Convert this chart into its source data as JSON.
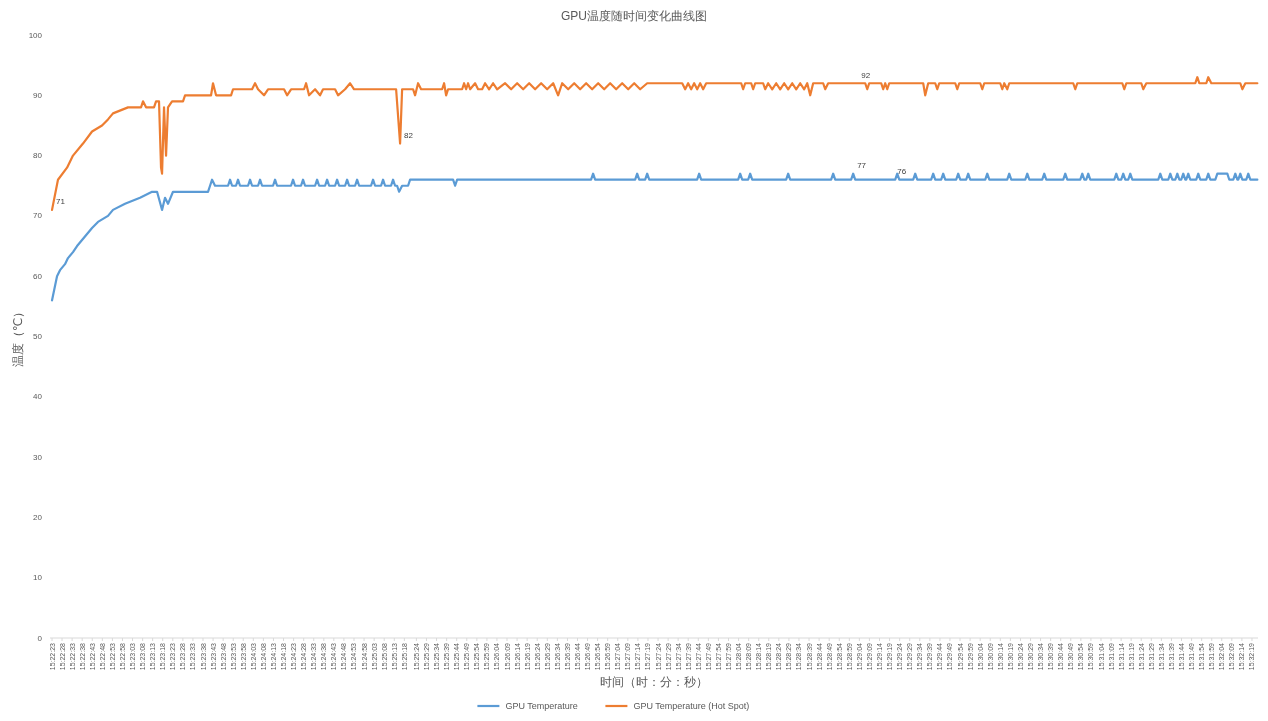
{
  "chart_data": {
    "type": "line",
    "title": "GPU温度随时间变化曲线图",
    "xlabel": "时间（时：分：秒）",
    "ylabel": "温度（℃）",
    "xlim": [
      15.37278,
      15.53944
    ],
    "ylim": [
      0,
      100
    ],
    "yticks": [
      0,
      10,
      20,
      30,
      40,
      50,
      60,
      70,
      80,
      90,
      100
    ],
    "xticks": [
      {
        "value": 15.37306,
        "label": "15:22:23"
      },
      {
        "value": 15.37444,
        "label": "15:22:28"
      },
      {
        "value": 15.37583,
        "label": "15:22:33"
      },
      {
        "value": 15.37722,
        "label": "15:22:38"
      },
      {
        "value": 15.37861,
        "label": "15:22:43"
      },
      {
        "value": 15.38,
        "label": "15:22:48"
      },
      {
        "value": 15.38139,
        "label": "15:22:53"
      },
      {
        "value": 15.38278,
        "label": "15:22:58"
      },
      {
        "value": 15.38417,
        "label": "15:23:03"
      },
      {
        "value": 15.38556,
        "label": "15:23:08"
      },
      {
        "value": 15.38694,
        "label": "15:23:13"
      },
      {
        "value": 15.38833,
        "label": "15:23:18"
      },
      {
        "value": 15.38972,
        "label": "15:23:23"
      },
      {
        "value": 15.39111,
        "label": "15:23:28"
      },
      {
        "value": 15.3925,
        "label": "15:23:33"
      },
      {
        "value": 15.39389,
        "label": "15:23:38"
      },
      {
        "value": 15.39528,
        "label": "15:23:43"
      },
      {
        "value": 15.39667,
        "label": "15:23:48"
      },
      {
        "value": 15.39806,
        "label": "15:23:53"
      },
      {
        "value": 15.39944,
        "label": "15:23:58"
      },
      {
        "value": 15.40083,
        "label": "15:24:03"
      },
      {
        "value": 15.40222,
        "label": "15:24:08"
      },
      {
        "value": 15.40361,
        "label": "15:24:13"
      },
      {
        "value": 15.405,
        "label": "15:24:18"
      },
      {
        "value": 15.40639,
        "label": "15:24:23"
      },
      {
        "value": 15.40778,
        "label": "15:24:28"
      },
      {
        "value": 15.40917,
        "label": "15:24:33"
      },
      {
        "value": 15.41056,
        "label": "15:24:38"
      },
      {
        "value": 15.41194,
        "label": "15:24:43"
      },
      {
        "value": 15.41333,
        "label": "15:24:48"
      },
      {
        "value": 15.41472,
        "label": "15:24:53"
      },
      {
        "value": 15.41611,
        "label": "15:24:58"
      },
      {
        "value": 15.4175,
        "label": "15:25:03"
      },
      {
        "value": 15.41889,
        "label": "15:25:08"
      },
      {
        "value": 15.42028,
        "label": "15:25:13"
      },
      {
        "value": 15.42167,
        "label": "15:25:18"
      },
      {
        "value": 15.42333,
        "label": "15:25:24"
      },
      {
        "value": 15.42472,
        "label": "15:25:29"
      },
      {
        "value": 15.42611,
        "label": "15:25:34"
      },
      {
        "value": 15.4275,
        "label": "15:25:39"
      },
      {
        "value": 15.42889,
        "label": "15:25:44"
      },
      {
        "value": 15.43028,
        "label": "15:25:49"
      },
      {
        "value": 15.43167,
        "label": "15:25:54"
      },
      {
        "value": 15.43306,
        "label": "15:25:59"
      },
      {
        "value": 15.43444,
        "label": "15:26:04"
      },
      {
        "value": 15.43583,
        "label": "15:26:09"
      },
      {
        "value": 15.43722,
        "label": "15:26:14"
      },
      {
        "value": 15.43861,
        "label": "15:26:19"
      },
      {
        "value": 15.44,
        "label": "15:26:24"
      },
      {
        "value": 15.44139,
        "label": "15:26:29"
      },
      {
        "value": 15.44278,
        "label": "15:26:34"
      },
      {
        "value": 15.44417,
        "label": "15:26:39"
      },
      {
        "value": 15.44556,
        "label": "15:26:44"
      },
      {
        "value": 15.44694,
        "label": "15:26:49"
      },
      {
        "value": 15.44833,
        "label": "15:26:54"
      },
      {
        "value": 15.44972,
        "label": "15:26:59"
      },
      {
        "value": 15.45111,
        "label": "15:27:04"
      },
      {
        "value": 15.4525,
        "label": "15:27:09"
      },
      {
        "value": 15.45389,
        "label": "15:27:14"
      },
      {
        "value": 15.45528,
        "label": "15:27:19"
      },
      {
        "value": 15.45667,
        "label": "15:27:24"
      },
      {
        "value": 15.45806,
        "label": "15:27:29"
      },
      {
        "value": 15.45944,
        "label": "15:27:34"
      },
      {
        "value": 15.46083,
        "label": "15:27:39"
      },
      {
        "value": 15.46222,
        "label": "15:27:44"
      },
      {
        "value": 15.46361,
        "label": "15:27:49"
      },
      {
        "value": 15.465,
        "label": "15:27:54"
      },
      {
        "value": 15.46639,
        "label": "15:27:59"
      },
      {
        "value": 15.46778,
        "label": "15:28:04"
      },
      {
        "value": 15.46917,
        "label": "15:28:09"
      },
      {
        "value": 15.47056,
        "label": "15:28:14"
      },
      {
        "value": 15.47194,
        "label": "15:28:19"
      },
      {
        "value": 15.47333,
        "label": "15:28:24"
      },
      {
        "value": 15.47472,
        "label": "15:28:29"
      },
      {
        "value": 15.47611,
        "label": "15:28:34"
      },
      {
        "value": 15.4775,
        "label": "15:28:39"
      },
      {
        "value": 15.47889,
        "label": "15:28:44"
      },
      {
        "value": 15.48028,
        "label": "15:28:49"
      },
      {
        "value": 15.48167,
        "label": "15:28:54"
      },
      {
        "value": 15.48306,
        "label": "15:28:59"
      },
      {
        "value": 15.48444,
        "label": "15:29:04"
      },
      {
        "value": 15.48583,
        "label": "15:29:09"
      },
      {
        "value": 15.48722,
        "label": "15:29:14"
      },
      {
        "value": 15.48861,
        "label": "15:29:19"
      },
      {
        "value": 15.49,
        "label": "15:29:24"
      },
      {
        "value": 15.49139,
        "label": "15:29:29"
      },
      {
        "value": 15.49278,
        "label": "15:29:34"
      },
      {
        "value": 15.49417,
        "label": "15:29:39"
      },
      {
        "value": 15.49556,
        "label": "15:29:44"
      },
      {
        "value": 15.49694,
        "label": "15:29:49"
      },
      {
        "value": 15.49833,
        "label": "15:29:54"
      },
      {
        "value": 15.49972,
        "label": "15:29:59"
      },
      {
        "value": 15.50111,
        "label": "15:30:04"
      },
      {
        "value": 15.5025,
        "label": "15:30:09"
      },
      {
        "value": 15.50389,
        "label": "15:30:14"
      },
      {
        "value": 15.50528,
        "label": "15:30:19"
      },
      {
        "value": 15.50667,
        "label": "15:30:24"
      },
      {
        "value": 15.50806,
        "label": "15:30:29"
      },
      {
        "value": 15.50944,
        "label": "15:30:34"
      },
      {
        "value": 15.51083,
        "label": "15:30:39"
      },
      {
        "value": 15.51222,
        "label": "15:30:44"
      },
      {
        "value": 15.51361,
        "label": "15:30:49"
      },
      {
        "value": 15.515,
        "label": "15:30:54"
      },
      {
        "value": 15.51639,
        "label": "15:30:59"
      },
      {
        "value": 15.51778,
        "label": "15:31:04"
      },
      {
        "value": 15.51917,
        "label": "15:31:09"
      },
      {
        "value": 15.52056,
        "label": "15:31:14"
      },
      {
        "value": 15.52194,
        "label": "15:31:19"
      },
      {
        "value": 15.52333,
        "label": "15:31:24"
      },
      {
        "value": 15.52472,
        "label": "15:31:29"
      },
      {
        "value": 15.52611,
        "label": "15:31:34"
      },
      {
        "value": 15.5275,
        "label": "15:31:39"
      },
      {
        "value": 15.52889,
        "label": "15:31:44"
      },
      {
        "value": 15.53028,
        "label": "15:31:49"
      },
      {
        "value": 15.53167,
        "label": "15:31:54"
      },
      {
        "value": 15.53306,
        "label": "15:31:59"
      },
      {
        "value": 15.53444,
        "label": "15:32:04"
      },
      {
        "value": 15.53583,
        "label": "15:32:09"
      },
      {
        "value": 15.53722,
        "label": "15:32:14"
      },
      {
        "value": 15.53861,
        "label": "15:32:19"
      }
    ],
    "legend": "bottom",
    "series": [
      {
        "name": "GPU Temperature",
        "color": "#5b9bd5",
        "x": [
          15.37306,
          15.37375,
          15.37416,
          15.37485,
          15.37526,
          15.37595,
          15.37651,
          15.3772,
          15.37789,
          15.37858,
          15.3794,
          15.38078,
          15.38147,
          15.38313,
          15.3852,
          15.38686,
          15.38755,
          15.38824,
          15.38865,
          15.38906,
          15.38975,
          15.39458,
          15.39486,
          15.39514,
          15.39555,
          15.39734,
          15.39762,
          15.3979,
          15.39844,
          15.39872,
          15.399,
          15.4001,
          15.40038,
          15.40066,
          15.40148,
          15.40176,
          15.40204,
          15.40355,
          15.40383,
          15.40411,
          15.40603,
          15.40631,
          15.40659,
          15.40741,
          15.40769,
          15.40797,
          15.40935,
          15.40963,
          15.40991,
          15.41073,
          15.41101,
          15.41129,
          15.41211,
          15.41239,
          15.41267,
          15.41349,
          15.41377,
          15.41405,
          15.41487,
          15.41515,
          15.41543,
          15.41707,
          15.41735,
          15.41763,
          15.41845,
          15.41873,
          15.41901,
          15.41983,
          15.42011,
          15.42039,
          15.42067,
          15.42094,
          15.42136,
          15.42218,
          15.42246,
          15.42839,
          15.42867,
          15.42895,
          15.44743,
          15.44771,
          15.44799,
          15.45351,
          15.45379,
          15.45407,
          15.45489,
          15.45517,
          15.45545,
          15.46206,
          15.46234,
          15.46262,
          15.46772,
          15.468,
          15.46828,
          15.4691,
          15.46938,
          15.46966,
          15.47434,
          15.47462,
          15.4749,
          15.48055,
          15.48083,
          15.48111,
          15.48331,
          15.48359,
          15.48387,
          15.48939,
          15.48967,
          15.48995,
          15.49187,
          15.49215,
          15.49243,
          15.49435,
          15.49463,
          15.49491,
          15.49573,
          15.49601,
          15.49629,
          15.4978,
          15.49808,
          15.49836,
          15.49918,
          15.49946,
          15.49974,
          15.50181,
          15.50209,
          15.50237,
          15.50484,
          15.50512,
          15.5054,
          15.50733,
          15.50761,
          15.50789,
          15.50967,
          15.50995,
          15.51023,
          15.51257,
          15.51285,
          15.51313,
          15.51492,
          15.5152,
          15.51548,
          15.51574,
          15.51602,
          15.5163,
          15.51961,
          15.51989,
          15.52017,
          15.52057,
          15.52085,
          15.52113,
          15.52154,
          15.52182,
          15.5221,
          15.52568,
          15.52596,
          15.52624,
          15.52706,
          15.52734,
          15.52762,
          15.52803,
          15.52831,
          15.52859,
          15.52885,
          15.52913,
          15.52941,
          15.52954,
          15.52982,
          15.5301,
          15.53092,
          15.5312,
          15.53148,
          15.5323,
          15.53258,
          15.53286,
          15.53355,
          15.53383,
          15.53521,
          15.53548,
          15.53603,
          15.53631,
          15.53659,
          15.53672,
          15.537,
          15.53728,
          15.53782,
          15.5381,
          15.53838,
          15.53935
        ],
        "values": [
          56,
          60,
          61,
          62,
          63,
          64,
          65,
          66,
          67,
          68,
          69,
          70,
          71,
          72,
          73,
          74,
          74,
          71,
          73,
          72,
          74,
          74,
          75,
          76,
          75,
          75,
          76,
          75,
          75,
          76,
          75,
          75,
          76,
          75,
          75,
          76,
          75,
          75,
          76,
          75,
          75,
          76,
          75,
          75,
          76,
          75,
          75,
          76,
          75,
          75,
          76,
          75,
          75,
          76,
          75,
          75,
          76,
          75,
          75,
          76,
          75,
          75,
          76,
          75,
          75,
          76,
          75,
          75,
          76,
          75,
          75,
          74,
          75,
          75,
          76,
          76,
          75,
          76,
          76,
          77,
          76,
          76,
          77,
          76,
          76,
          77,
          76,
          76,
          77,
          76,
          76,
          77,
          76,
          76,
          77,
          76,
          76,
          77,
          76,
          76,
          77,
          76,
          76,
          77,
          76,
          76,
          77,
          76,
          76,
          77,
          76,
          76,
          77,
          76,
          76,
          77,
          76,
          76,
          77,
          76,
          76,
          77,
          76,
          76,
          77,
          76,
          76,
          77,
          76,
          76,
          77,
          76,
          76,
          77,
          76,
          76,
          77,
          76,
          76,
          77,
          76,
          76,
          77,
          76,
          76,
          77,
          76,
          76,
          77,
          76,
          76,
          77,
          76,
          76,
          77,
          76,
          76,
          77,
          76,
          76,
          77,
          76,
          76,
          77,
          76,
          76,
          77,
          76,
          76,
          77,
          76,
          76,
          77,
          76,
          76,
          77,
          77,
          76,
          76,
          77,
          76,
          76,
          77,
          76,
          76,
          77,
          76,
          76
        ]
      },
      {
        "name": "GPU Temperature (Hot Spot)",
        "color": "#ed7d31",
        "x": [
          15.37306,
          15.37388,
          15.37513,
          15.37595,
          15.37733,
          15.37858,
          15.37996,
          15.38078,
          15.38147,
          15.38354,
          15.38534,
          15.38561,
          15.38603,
          15.38713,
          15.38741,
          15.38782,
          15.3881,
          15.38824,
          15.38851,
          15.38879,
          15.38906,
          15.38962,
          15.39113,
          15.39141,
          15.395,
          15.39527,
          15.39569,
          15.39776,
          15.39803,
          15.40066,
          15.40107,
          15.40148,
          15.40231,
          15.40286,
          15.40507,
          15.40549,
          15.40604,
          15.40783,
          15.40811,
          15.40852,
          15.40935,
          15.41004,
          15.41045,
          15.41211,
          15.41252,
          15.41349,
          15.41418,
          15.41473,
          15.42053,
          15.42108,
          15.42136,
          15.42287,
          15.42315,
          15.42356,
          15.42398,
          15.42688,
          15.42715,
          15.42743,
          15.4277,
          15.42964,
          15.42991,
          15.43019,
          15.43046,
          15.43074,
          15.43143,
          15.43184,
          15.4324,
          15.43281,
          15.43336,
          15.43391,
          15.43447,
          15.43557,
          15.4364,
          15.43723,
          15.43806,
          15.43889,
          15.43971,
          15.44054,
          15.44137,
          15.4422,
          15.44288,
          15.44344,
          15.44427,
          15.4451,
          15.44592,
          15.44675,
          15.44758,
          15.44841,
          15.44924,
          15.45006,
          15.45089,
          15.45172,
          15.45255,
          15.45338,
          15.4542,
          15.45517,
          15.46,
          15.46041,
          15.46082,
          15.46124,
          15.46165,
          15.46207,
          15.46248,
          15.46289,
          15.46331,
          15.46814,
          15.46841,
          15.46869,
          15.46952,
          15.46979,
          15.47007,
          15.47117,
          15.47145,
          15.47186,
          15.47242,
          15.47297,
          15.47352,
          15.47407,
          15.47462,
          15.47518,
          15.47573,
          15.47628,
          15.47683,
          15.47725,
          15.47766,
          15.47807,
          15.47945,
          15.47973,
          15.48014,
          15.48525,
          15.48553,
          15.4858,
          15.48746,
          15.48773,
          15.48801,
          15.48829,
          15.48856,
          15.49325,
          15.49353,
          15.49394,
          15.49491,
          15.49519,
          15.49546,
          15.49767,
          15.49795,
          15.49822,
          15.50112,
          15.5014,
          15.50167,
          15.50388,
          15.50416,
          15.50443,
          15.50485,
          15.50512,
          15.51395,
          15.51423,
          15.51451,
          15.52072,
          15.52099,
          15.52127,
          15.52334,
          15.52361,
          15.52403,
          15.53079,
          15.53107,
          15.53134,
          15.53231,
          15.53258,
          15.533,
          15.537,
          15.53728,
          15.53769,
          15.53935
        ],
        "values": [
          71,
          76,
          78,
          80,
          82,
          84,
          85,
          86,
          87,
          88,
          88,
          89,
          88,
          88,
          89,
          89,
          78,
          77,
          88,
          80,
          88,
          89,
          89,
          90,
          90,
          92,
          90,
          90,
          91,
          91,
          92,
          91,
          90,
          91,
          91,
          90,
          91,
          91,
          92,
          90,
          91,
          90,
          91,
          91,
          90,
          91,
          92,
          91,
          91,
          82,
          91,
          91,
          90,
          92,
          91,
          91,
          92,
          90,
          91,
          91,
          92,
          91,
          92,
          91,
          92,
          91,
          91,
          92,
          91,
          92,
          91,
          92,
          91,
          92,
          91,
          92,
          91,
          92,
          91,
          92,
          90,
          92,
          91,
          92,
          91,
          92,
          91,
          92,
          91,
          92,
          91,
          92,
          91,
          92,
          91,
          92,
          92,
          91,
          92,
          91,
          92,
          91,
          92,
          91,
          92,
          92,
          91,
          92,
          92,
          91,
          92,
          92,
          91,
          92,
          91,
          92,
          91,
          92,
          91,
          92,
          91,
          92,
          91,
          92,
          90,
          92,
          92,
          91,
          92,
          92,
          91,
          92,
          92,
          91,
          92,
          91,
          92,
          92,
          90,
          92,
          92,
          91,
          92,
          92,
          91,
          92,
          92,
          91,
          92,
          92,
          91,
          92,
          91,
          92,
          92,
          91,
          92,
          92,
          91,
          92,
          92,
          91,
          92,
          92,
          93,
          92,
          92,
          93,
          92,
          92,
          91,
          92,
          92
        ]
      }
    ],
    "annotations": [
      {
        "text": "71",
        "x": 15.37306,
        "y": 71
      },
      {
        "text": "82",
        "x": 15.42108,
        "y": 82
      },
      {
        "text": "92",
        "x": 15.48415,
        "y": 92
      },
      {
        "text": "77",
        "x": 15.48359,
        "y": 77
      },
      {
        "text": "76",
        "x": 15.48911,
        "y": 76
      }
    ]
  }
}
